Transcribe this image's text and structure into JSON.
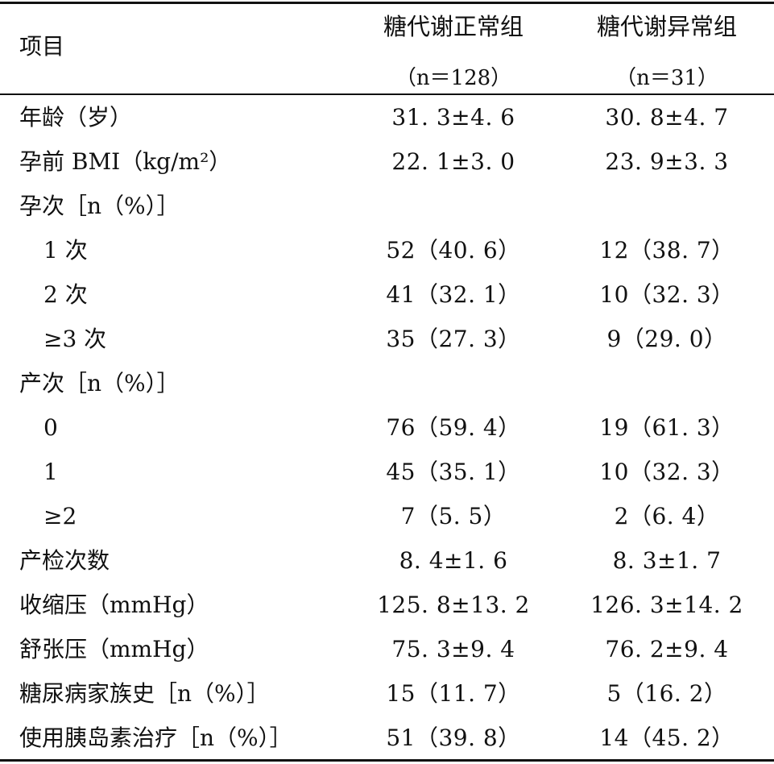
{
  "header": {
    "item_label": "项目",
    "columns": [
      {
        "name": "糖代谢正常组",
        "n_text": "（n＝128）"
      },
      {
        "name": "糖代谢异常组",
        "n_text": "（n＝31）"
      }
    ]
  },
  "rows": [
    {
      "label": "年龄（岁）",
      "indent": false,
      "v1": "31. 3±4. 6",
      "v2": "30. 8±4. 7"
    },
    {
      "label": "孕前 BMI（kg/m²）",
      "indent": false,
      "v1": "22. 1±3. 0",
      "v2": "23. 9±3. 3"
    },
    {
      "label": "孕次［n（%）］",
      "indent": false,
      "v1": "",
      "v2": ""
    },
    {
      "label": "1 次",
      "indent": true,
      "v1": "52（40. 6）",
      "v2": "12（38. 7）"
    },
    {
      "label": "2 次",
      "indent": true,
      "v1": "41（32. 1）",
      "v2": "10（32. 3）"
    },
    {
      "label": "≥3 次",
      "indent": true,
      "v1": "35（27. 3）",
      "v2": "9（29. 0）"
    },
    {
      "label": "产次［n（%）］",
      "indent": false,
      "v1": "",
      "v2": ""
    },
    {
      "label": "0",
      "indent": true,
      "v1": "76（59. 4）",
      "v2": "19（61. 3）"
    },
    {
      "label": "1",
      "indent": true,
      "v1": "45（35. 1）",
      "v2": "10（32. 3）"
    },
    {
      "label": "≥2",
      "indent": true,
      "v1": "7（5. 5）",
      "v2": "2（6. 4）"
    },
    {
      "label": "产检次数",
      "indent": false,
      "v1": "8. 4±1. 6",
      "v2": "8. 3±1. 7"
    },
    {
      "label": "收缩压（mmHg）",
      "indent": false,
      "v1": "125. 8±13. 2",
      "v2": "126. 3±14. 2"
    },
    {
      "label": "舒张压（mmHg）",
      "indent": false,
      "v1": "75. 3±9. 4",
      "v2": "76. 2±9. 4"
    },
    {
      "label": "糖尿病家族史［n（%）］",
      "indent": false,
      "v1": "15（11. 7）",
      "v2": "5（16. 2）"
    },
    {
      "label": "使用胰岛素治疗［n（%）］",
      "indent": false,
      "v1": "51（39. 8）",
      "v2": "14（45. 2）"
    }
  ]
}
